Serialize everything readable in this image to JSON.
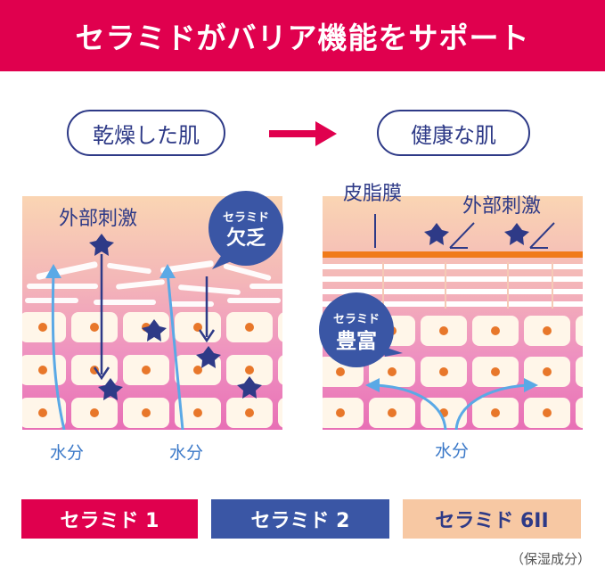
{
  "banner": {
    "title": "セラミドがバリア機能をサポート"
  },
  "left": {
    "state_label": "乾燥した肌",
    "stimulus_label": "外部刺激",
    "badge_line1": "セラミド",
    "badge_line2": "欠乏",
    "water_label_1": "水分",
    "water_label_2": "水分"
  },
  "right": {
    "state_label": "健康な肌",
    "sebum_label": "皮脂膜",
    "stimulus_label": "外部刺激",
    "badge_line1": "セラミド",
    "badge_line2": "豊富",
    "water_label": "水分"
  },
  "legend": [
    {
      "label": "セラミド 1",
      "color": "#e0004e",
      "text_color": "#ffffff"
    },
    {
      "label": "セラミド 2",
      "color": "#3a56a5",
      "text_color": "#ffffff"
    },
    {
      "label": "セラミド 6II",
      "color": "#f7c8a3",
      "text_color": "#2e3a87"
    }
  ],
  "footnote": "（保湿成分）",
  "colors": {
    "brand": "#e0004e",
    "navy": "#2e3a87",
    "arrow": "#e0004e",
    "water": "#5aa9e6"
  }
}
